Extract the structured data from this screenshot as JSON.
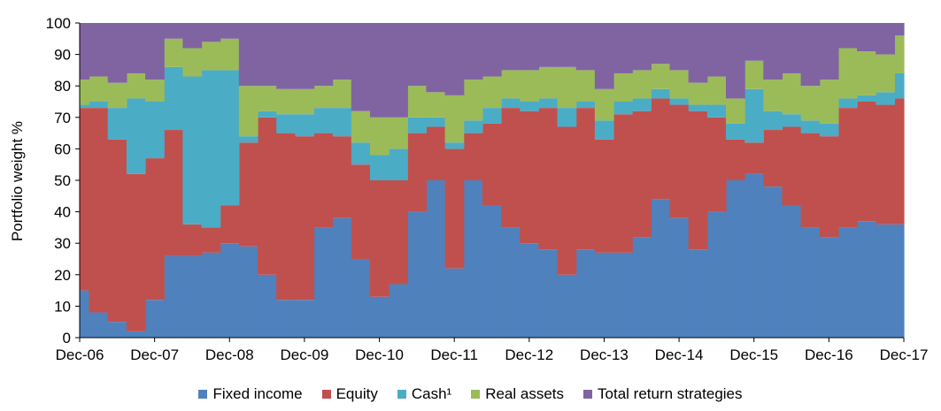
{
  "chart_data": {
    "type": "area",
    "stacked": true,
    "xlabel": "",
    "ylabel": "Portfolio weight %",
    "ylim": [
      0,
      100
    ],
    "y_ticks": [
      0,
      10,
      20,
      30,
      40,
      50,
      60,
      70,
      80,
      90,
      100
    ],
    "x_tick_labels": [
      "Dec-06",
      "Dec-07",
      "Dec-08",
      "Dec-09",
      "Dec-10",
      "Dec-11",
      "Dec-12",
      "Dec-13",
      "Dec-14",
      "Dec-15",
      "Dec-16",
      "Dec-17"
    ],
    "x": [
      "Dec-06",
      "Mar-07",
      "Jun-07",
      "Sep-07",
      "Dec-07",
      "Mar-08",
      "Jun-08",
      "Sep-08",
      "Dec-08",
      "Mar-09",
      "Jun-09",
      "Sep-09",
      "Dec-09",
      "Mar-10",
      "Jun-10",
      "Sep-10",
      "Dec-10",
      "Mar-11",
      "Jun-11",
      "Sep-11",
      "Dec-11",
      "Mar-12",
      "Jun-12",
      "Sep-12",
      "Dec-12",
      "Mar-13",
      "Jun-13",
      "Sep-13",
      "Dec-13",
      "Mar-14",
      "Jun-14",
      "Sep-14",
      "Dec-14",
      "Mar-15",
      "Jun-15",
      "Sep-15",
      "Dec-15",
      "Mar-16",
      "Jun-16",
      "Sep-16",
      "Dec-16",
      "Mar-17",
      "Jun-17",
      "Sep-17",
      "Dec-17"
    ],
    "grid": false,
    "legend_position": "bottom",
    "colors": [
      "#4f81bd",
      "#c0504d",
      "#4bacc6",
      "#9bbb59",
      "#8064a2"
    ],
    "series": [
      {
        "name": "Fixed income",
        "values": [
          15,
          8,
          5,
          2,
          12,
          26,
          26,
          27,
          30,
          29,
          20,
          12,
          12,
          35,
          38,
          25,
          13,
          17,
          40,
          50,
          22,
          50,
          42,
          35,
          30,
          28,
          20,
          28,
          27,
          27,
          32,
          44,
          38,
          28,
          40,
          50,
          52,
          48,
          42,
          35,
          32,
          35,
          37,
          36,
          36
        ]
      },
      {
        "name": "Equity",
        "values": [
          58,
          65,
          58,
          50,
          45,
          40,
          10,
          8,
          12,
          33,
          50,
          53,
          52,
          30,
          26,
          30,
          37,
          33,
          25,
          17,
          38,
          15,
          26,
          38,
          42,
          45,
          47,
          45,
          36,
          44,
          40,
          32,
          36,
          44,
          30,
          13,
          10,
          18,
          25,
          30,
          32,
          38,
          38,
          38,
          40
        ]
      },
      {
        "name": "Cash¹",
        "values": [
          1,
          2,
          10,
          24,
          18,
          20,
          47,
          50,
          43,
          2,
          2,
          6,
          7,
          8,
          9,
          7,
          8,
          10,
          5,
          3,
          2,
          4,
          5,
          3,
          3,
          3,
          6,
          2,
          6,
          4,
          4,
          3,
          2,
          2,
          4,
          5,
          17,
          6,
          4,
          4,
          4,
          3,
          2,
          4,
          8
        ]
      },
      {
        "name": "Real assets",
        "values": [
          8,
          8,
          8,
          8,
          7,
          9,
          9,
          9,
          10,
          16,
          8,
          8,
          8,
          7,
          9,
          10,
          12,
          10,
          10,
          8,
          15,
          13,
          10,
          9,
          10,
          10,
          13,
          10,
          10,
          9,
          9,
          8,
          9,
          7,
          9,
          8,
          9,
          10,
          13,
          11,
          14,
          16,
          14,
          12,
          12
        ]
      },
      {
        "name": "Total return strategies",
        "values": [
          18,
          17,
          19,
          16,
          18,
          5,
          8,
          6,
          5,
          20,
          20,
          21,
          21,
          20,
          18,
          28,
          30,
          30,
          20,
          22,
          23,
          18,
          17,
          15,
          15,
          14,
          14,
          15,
          21,
          16,
          15,
          13,
          15,
          19,
          17,
          24,
          12,
          18,
          16,
          20,
          18,
          8,
          9,
          10,
          4
        ]
      }
    ]
  }
}
